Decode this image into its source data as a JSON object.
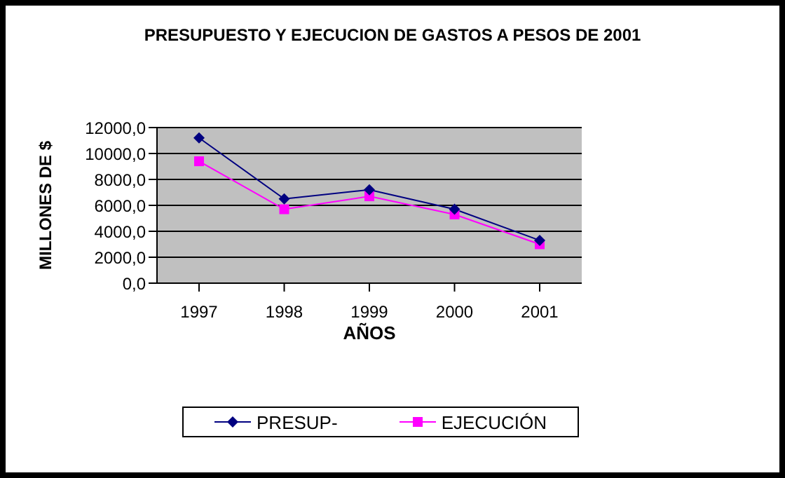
{
  "chart_data": {
    "type": "line",
    "title": "PRESUPUESTO Y EJECUCION DE GASTOS A PESOS DE 2001",
    "xlabel": "AÑOS",
    "ylabel": "MILLONES DE $",
    "categories": [
      "1997",
      "1998",
      "1999",
      "2000",
      "2001"
    ],
    "series": [
      {
        "name": "PRESUP-",
        "color": "#000080",
        "marker": "diamond",
        "values": [
          11200,
          6500,
          7200,
          5700,
          3300
        ]
      },
      {
        "name": "EJECUCIÓN",
        "color": "#ff00ff",
        "marker": "square",
        "values": [
          9400,
          5700,
          6700,
          5300,
          3000
        ]
      }
    ],
    "ylim": [
      0,
      12000
    ],
    "yticks": [
      {
        "value": 0,
        "label": "0,0"
      },
      {
        "value": 2000,
        "label": "2000,0"
      },
      {
        "value": 4000,
        "label": "4000,0"
      },
      {
        "value": 6000,
        "label": "6000,0"
      },
      {
        "value": 8000,
        "label": "8000,0"
      },
      {
        "value": 10000,
        "label": "10000,0"
      },
      {
        "value": 12000,
        "label": "12000,0"
      }
    ],
    "grid": "y",
    "legend": "bottom"
  }
}
